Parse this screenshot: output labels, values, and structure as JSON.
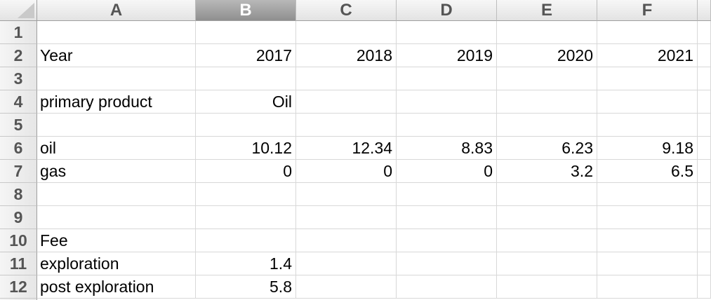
{
  "columns": [
    "A",
    "B",
    "C",
    "D",
    "E",
    "F"
  ],
  "selected_column": "B",
  "rows": [
    {
      "num": "1",
      "cells": [
        "",
        "",
        "",
        "",
        "",
        ""
      ]
    },
    {
      "num": "2",
      "cells": [
        "Year",
        "2017",
        "2018",
        "2019",
        "2020",
        "2021"
      ]
    },
    {
      "num": "3",
      "cells": [
        "",
        "",
        "",
        "",
        "",
        ""
      ]
    },
    {
      "num": "4",
      "cells": [
        "primary product",
        "Oil",
        "",
        "",
        "",
        ""
      ]
    },
    {
      "num": "5",
      "cells": [
        "",
        "",
        "",
        "",
        "",
        ""
      ]
    },
    {
      "num": "6",
      "cells": [
        "oil",
        "10.12",
        "12.34",
        "8.83",
        "6.23",
        "9.18"
      ]
    },
    {
      "num": "7",
      "cells": [
        "gas",
        "0",
        "0",
        "0",
        "3.2",
        "6.5"
      ]
    },
    {
      "num": "8",
      "cells": [
        "",
        "",
        "",
        "",
        "",
        ""
      ]
    },
    {
      "num": "9",
      "cells": [
        "",
        "",
        "",
        "",
        "",
        ""
      ]
    },
    {
      "num": "10",
      "cells": [
        "Fee",
        "",
        "",
        "",
        "",
        ""
      ]
    },
    {
      "num": "11",
      "cells": [
        "exploration",
        "1.4",
        "",
        "",
        "",
        ""
      ]
    },
    {
      "num": "12",
      "cells": [
        "post exploration",
        "5.8",
        "",
        "",
        "",
        ""
      ]
    }
  ]
}
